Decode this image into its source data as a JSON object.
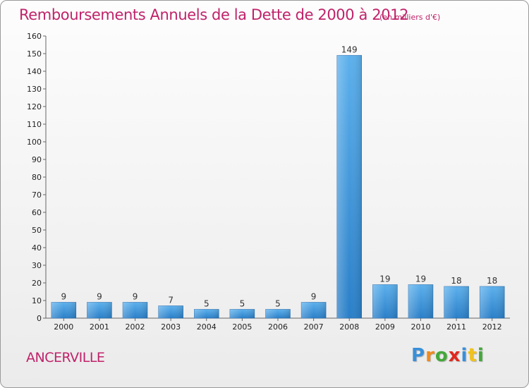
{
  "header": {
    "title": "Remboursements Annuels de la Dette de 2000 à 2012",
    "subtitle": "(en milliers d'€)"
  },
  "footer": {
    "place": "ANCERVILLE",
    "logo_letters": [
      "P",
      "r",
      "o",
      "x",
      "i",
      "t",
      "i"
    ],
    "logo_colors": [
      "#3a8fd8",
      "#f08a1c",
      "#43a83a",
      "#e0271e",
      "#3a8fd8",
      "#f0c21c",
      "#43a83a"
    ]
  },
  "chart_data": {
    "type": "bar",
    "categories": [
      "2000",
      "2001",
      "2002",
      "2003",
      "2004",
      "2005",
      "2006",
      "2007",
      "2008",
      "2009",
      "2010",
      "2011",
      "2012"
    ],
    "values": [
      9,
      9,
      9,
      7,
      5,
      5,
      5,
      9,
      149,
      19,
      19,
      18,
      18
    ],
    "data_labels": [
      "9",
      "9",
      "9",
      "7",
      "5",
      "5",
      "5",
      "9",
      "149",
      "19",
      "19",
      "18",
      "18"
    ],
    "title": "Remboursements Annuels de la Dette de 2000 à 2012",
    "subtitle": "(en milliers d'€)",
    "xlabel": "",
    "ylabel": "",
    "ylim": [
      0,
      160
    ],
    "ytick_step": 10,
    "grid": false,
    "legend": "none",
    "bar_color": "#4a9fe0"
  }
}
